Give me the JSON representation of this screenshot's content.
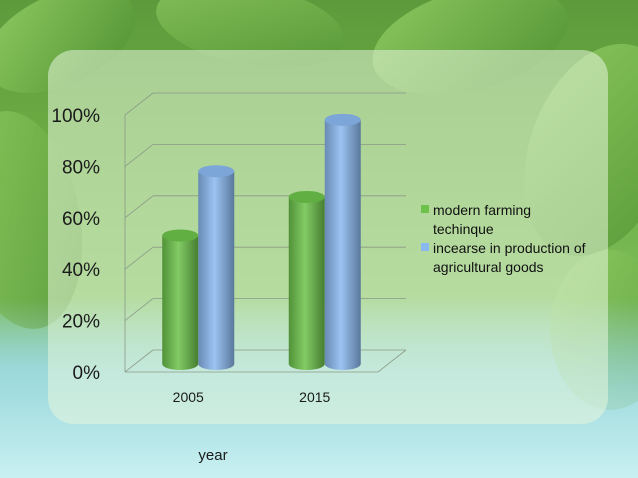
{
  "chart_data": {
    "type": "bar",
    "categories": [
      "2005",
      "2015"
    ],
    "series": [
      {
        "name": "modern farming techinque",
        "values": [
          50,
          65
        ],
        "color": "#6cc24a"
      },
      {
        "name": "incearse in production of agricultural goods",
        "values": [
          75,
          95
        ],
        "color": "#8ab8f0"
      }
    ],
    "ylim": [
      0,
      100
    ],
    "yticks": [
      "0%",
      "20%",
      "40%",
      "60%",
      "80%",
      "100%"
    ],
    "xlabel": "year",
    "legend_position": "right",
    "grid": true,
    "three_d": true
  },
  "legend": {
    "item1_line1": "modern farming",
    "item1_line2": "techinque",
    "item2_line1": "incearse in production of",
    "item2_line2": "agricultural goods"
  }
}
